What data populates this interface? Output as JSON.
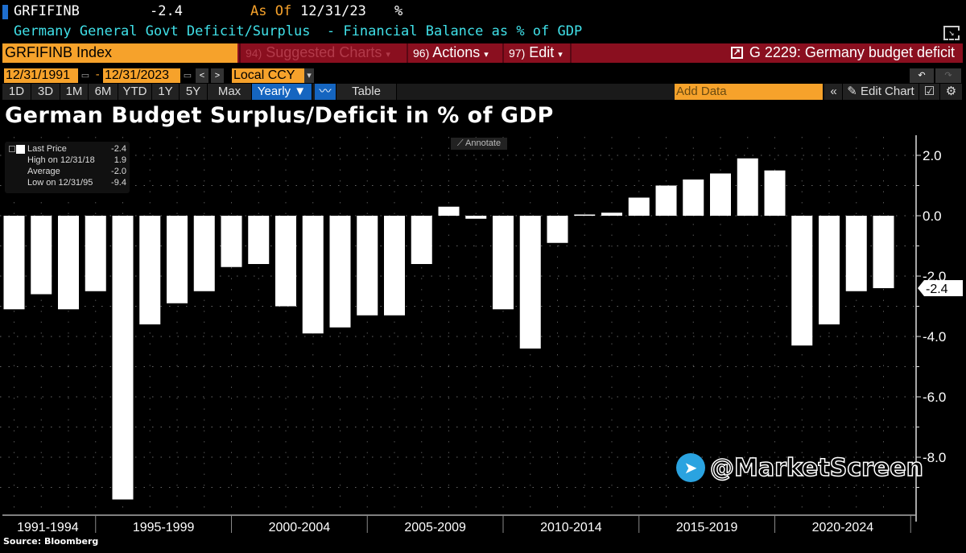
{
  "header": {
    "ticker": "GRFIFINB",
    "last": "-2.4",
    "as_of_label": "As Of",
    "as_of_date": "12/31/23",
    "unit": "%",
    "description": "Germany General Govt Deficit/Surplus  - Financial Balance as % of GDP"
  },
  "command_bar": {
    "security": "GRFIFINB Index",
    "suggested_num": "94)",
    "suggested": "Suggested Charts",
    "actions_num": "96)",
    "actions": "Actions",
    "edit_num": "97)",
    "edit": "Edit",
    "chart_ref": "G 2229: Germany budget deficit"
  },
  "range": {
    "start": "12/31/1991",
    "sep": "-",
    "end": "12/31/2023",
    "currency": "Local CCY"
  },
  "toolbar": {
    "periods": [
      "1D",
      "3D",
      "1M",
      "6M",
      "YTD",
      "1Y",
      "5Y",
      "Max"
    ],
    "frequency": "Yearly ▼",
    "table": "Table",
    "add_data_placeholder": "Add Data",
    "edit_chart": "Edit Chart",
    "collapse": "«"
  },
  "legend": {
    "last_label": "Last Price",
    "last_value": "-2.4",
    "high_label": "High on 12/31/18",
    "high_value": "1.9",
    "avg_label": "Average",
    "avg_value": "-2.0",
    "low_label": "Low on 12/31/95",
    "low_value": "-9.4"
  },
  "annotate": "Annotate",
  "watermark": "@MarketScreen",
  "source": "Source: Bloomberg",
  "colors": {
    "bar": "#ffffff",
    "background": "#000000",
    "accent_orange": "#f6a22b",
    "menu_red": "#8a0f1f",
    "cyan": "#40e0e8"
  },
  "chart_data": {
    "type": "bar",
    "title": "German Budget Surplus/Deficit in % of GDP",
    "categories": [
      "1991",
      "1992",
      "1993",
      "1994",
      "1995",
      "1996",
      "1997",
      "1998",
      "1999",
      "2000",
      "2001",
      "2002",
      "2003",
      "2004",
      "2005",
      "2006",
      "2007",
      "2008",
      "2009",
      "2010",
      "2011",
      "2012",
      "2013",
      "2014",
      "2015",
      "2016",
      "2017",
      "2018",
      "2019",
      "2020",
      "2021",
      "2022",
      "2023"
    ],
    "values": [
      -3.1,
      -2.6,
      -3.1,
      -2.5,
      -9.4,
      -3.6,
      -2.9,
      -2.5,
      -1.7,
      -1.6,
      -3.0,
      -3.9,
      -3.7,
      -3.3,
      -3.3,
      -1.6,
      0.3,
      -0.1,
      -3.1,
      -4.4,
      -0.9,
      0.0,
      0.1,
      0.6,
      1.0,
      1.2,
      1.4,
      1.9,
      1.5,
      -4.3,
      -3.6,
      -2.5,
      -2.4
    ],
    "x_tick_labels": [
      "1991-1994",
      "1995-1999",
      "2000-2004",
      "2005-2009",
      "2010-2014",
      "2015-2019",
      "2020-2024"
    ],
    "y_ticks": [
      "2.0",
      "0.0",
      "-2.0",
      "-4.0",
      "-6.0",
      "-8.0"
    ],
    "ylim": [
      -10,
      2.7
    ],
    "last_value_label": "-2.4",
    "grid": true,
    "axis_position": "right"
  }
}
